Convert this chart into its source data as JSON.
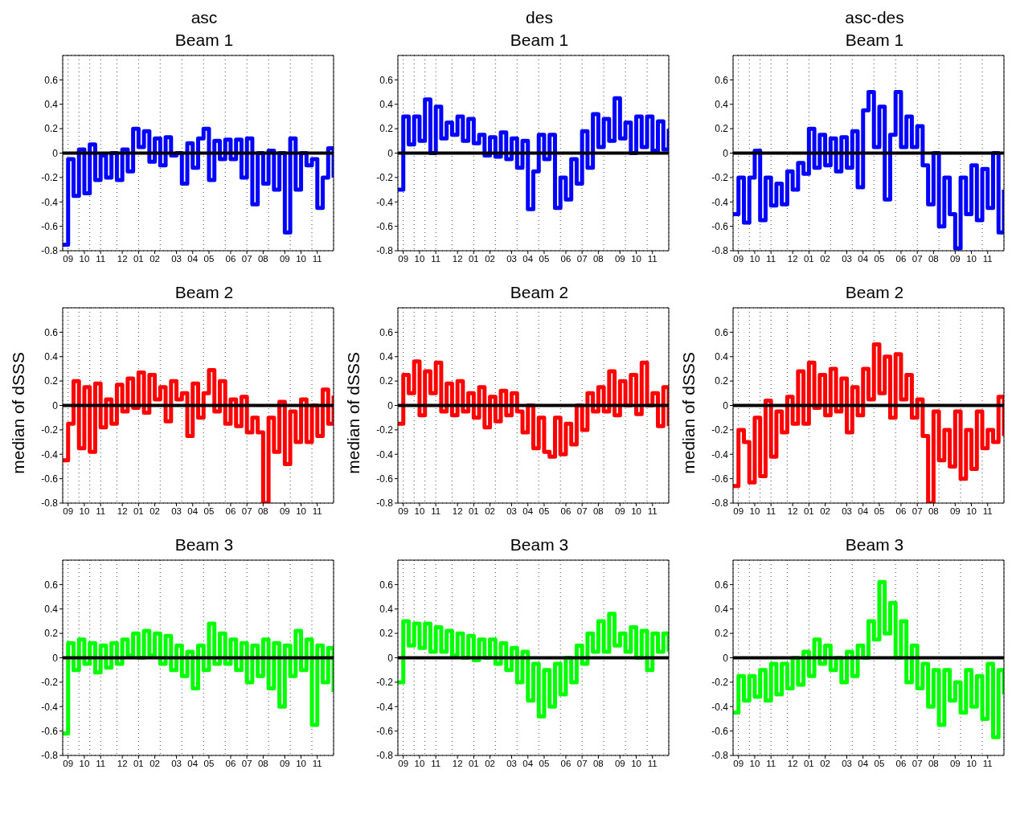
{
  "chart_data": [
    {
      "type": "step",
      "title": "asc",
      "subtitle": "Beam 1",
      "categories": [
        null,
        "09",
        null,
        null,
        "10",
        null,
        null,
        "11",
        null,
        null,
        null,
        "12",
        null,
        null,
        "01",
        null,
        null,
        "02",
        null,
        null,
        null,
        "03",
        null,
        null,
        "04",
        null,
        null,
        "05",
        null,
        null,
        null,
        "06",
        null,
        null,
        "07",
        null,
        null,
        "08",
        null,
        null,
        null,
        "09",
        null,
        null,
        "10",
        null,
        null,
        "11",
        null,
        null,
        null
      ],
      "ylim": [
        -0.8,
        0.8
      ],
      "yticks": [
        -0.8,
        -0.6,
        -0.4,
        -0.2,
        0,
        0.2,
        0.4,
        0.6
      ],
      "grid": true,
      "ref_lines": [
        {
          "axis": "y",
          "value": 0,
          "color": "#000000"
        }
      ],
      "series": [
        {
          "color": "#0000ff",
          "values": [
            -0.75,
            -0.05,
            -0.35,
            0.03,
            -0.33,
            0.07,
            -0.22,
            -0.02,
            -0.2,
            0.0,
            -0.22,
            0.03,
            -0.15,
            0.2,
            0.05,
            0.18,
            -0.07,
            0.12,
            -0.1,
            0.13,
            -0.02,
            0.0,
            -0.25,
            0.08,
            -0.12,
            0.12,
            0.2,
            -0.22,
            0.1,
            -0.05,
            0.11,
            -0.05,
            0.11,
            -0.2,
            0.12,
            -0.42,
            0.0,
            -0.25,
            0.02,
            -0.3,
            0.0,
            -0.65,
            0.12,
            -0.3,
            0.0,
            -0.1,
            -0.05,
            -0.45,
            -0.2,
            0.04,
            -0.2
          ]
        }
      ]
    },
    {
      "type": "step",
      "title": "des",
      "subtitle": "Beam 1",
      "categories": [
        null,
        "09",
        null,
        null,
        "10",
        null,
        null,
        "11",
        null,
        null,
        null,
        "12",
        null,
        null,
        "01",
        null,
        null,
        "02",
        null,
        null,
        null,
        "03",
        null,
        null,
        "04",
        null,
        null,
        "05",
        null,
        null,
        null,
        "06",
        null,
        null,
        "07",
        null,
        null,
        "08",
        null,
        null,
        null,
        "09",
        null,
        null,
        "10",
        null,
        null,
        "11",
        null,
        null,
        null
      ],
      "ylim": [
        -0.8,
        0.8
      ],
      "yticks": [
        -0.8,
        -0.6,
        -0.4,
        -0.2,
        0,
        0.2,
        0.4,
        0.6
      ],
      "grid": true,
      "ref_lines": [
        {
          "axis": "y",
          "value": 0,
          "color": "#000000"
        }
      ],
      "series": [
        {
          "color": "#0000ff",
          "values": [
            -0.3,
            0.3,
            0.07,
            0.3,
            0.1,
            0.44,
            0.0,
            0.38,
            0.12,
            0.25,
            0.15,
            0.3,
            0.1,
            0.28,
            0.08,
            0.15,
            -0.02,
            0.13,
            -0.03,
            0.17,
            -0.05,
            0.12,
            -0.12,
            0.1,
            -0.46,
            -0.15,
            0.15,
            -0.05,
            0.15,
            -0.45,
            -0.2,
            -0.38,
            -0.05,
            -0.25,
            0.18,
            -0.12,
            0.32,
            0.05,
            0.28,
            0.1,
            0.45,
            0.12,
            0.25,
            0.0,
            0.3,
            0.05,
            0.3,
            0.02,
            0.26,
            0.03,
            0.2
          ]
        }
      ]
    },
    {
      "type": "step",
      "title": "asc-des",
      "subtitle": "Beam 1",
      "categories": [
        null,
        "09",
        null,
        null,
        "10",
        null,
        null,
        "11",
        null,
        null,
        null,
        "12",
        null,
        null,
        "01",
        null,
        null,
        "02",
        null,
        null,
        null,
        "03",
        null,
        null,
        "04",
        null,
        null,
        "05",
        null,
        null,
        null,
        "06",
        null,
        null,
        "07",
        null,
        null,
        "08",
        null,
        null,
        null,
        "09",
        null,
        null,
        "10",
        null,
        null,
        "11",
        null,
        null,
        null
      ],
      "ylim": [
        -0.8,
        0.8
      ],
      "yticks": [
        -0.8,
        -0.6,
        -0.4,
        -0.2,
        0,
        0.2,
        0.4,
        0.6
      ],
      "grid": true,
      "ref_lines": [
        {
          "axis": "y",
          "value": 0,
          "color": "#000000"
        }
      ],
      "series": [
        {
          "color": "#0000ff",
          "values": [
            -0.5,
            -0.2,
            -0.57,
            -0.2,
            0.02,
            -0.55,
            -0.2,
            -0.43,
            -0.25,
            -0.42,
            -0.15,
            -0.3,
            -0.08,
            -0.17,
            0.2,
            -0.12,
            0.15,
            -0.1,
            0.12,
            -0.15,
            0.13,
            -0.12,
            0.18,
            -0.28,
            0.35,
            0.5,
            0.05,
            0.38,
            -0.38,
            0.15,
            0.5,
            0.05,
            0.3,
            0.05,
            0.22,
            -0.1,
            -0.42,
            0.0,
            -0.6,
            -0.2,
            -0.5,
            -0.78,
            -0.2,
            -0.5,
            -0.1,
            -0.55,
            -0.13,
            -0.45,
            0.0,
            -0.65,
            -0.3
          ]
        }
      ]
    },
    {
      "type": "step",
      "title": "Beam 2",
      "ylabel": "median of dSSS",
      "categories": [
        null,
        "09",
        null,
        null,
        "10",
        null,
        null,
        "11",
        null,
        null,
        null,
        "12",
        null,
        null,
        "01",
        null,
        null,
        "02",
        null,
        null,
        null,
        "03",
        null,
        null,
        "04",
        null,
        null,
        "05",
        null,
        null,
        null,
        "06",
        null,
        null,
        "07",
        null,
        null,
        "08",
        null,
        null,
        null,
        "09",
        null,
        null,
        "10",
        null,
        null,
        "11",
        null,
        null,
        null
      ],
      "ylim": [
        -0.8,
        0.8
      ],
      "yticks": [
        -0.8,
        -0.6,
        -0.4,
        -0.2,
        0,
        0.2,
        0.4,
        0.6
      ],
      "grid": true,
      "ref_lines": [
        {
          "axis": "y",
          "value": 0,
          "color": "#000000"
        }
      ],
      "series": [
        {
          "color": "#ff0000",
          "values": [
            -0.45,
            -0.15,
            0.2,
            -0.35,
            0.15,
            -0.38,
            0.18,
            -0.18,
            0.05,
            -0.15,
            0.17,
            -0.05,
            0.22,
            -0.02,
            0.27,
            -0.06,
            0.25,
            0.05,
            0.15,
            -0.13,
            0.2,
            0.05,
            0.1,
            -0.25,
            0.18,
            -0.1,
            0.1,
            0.29,
            -0.05,
            0.2,
            -0.15,
            0.05,
            -0.17,
            0.07,
            -0.22,
            -0.1,
            -0.22,
            -0.8,
            -0.1,
            -0.38,
            0.03,
            -0.48,
            -0.05,
            -0.3,
            0.05,
            -0.3,
            0.0,
            -0.25,
            0.13,
            -0.15,
            0.08
          ]
        }
      ]
    },
    {
      "type": "step",
      "title": "Beam 2",
      "ylabel": "median of dSSS",
      "categories": [
        null,
        "09",
        null,
        null,
        "10",
        null,
        null,
        "11",
        null,
        null,
        null,
        "12",
        null,
        null,
        "01",
        null,
        null,
        "02",
        null,
        null,
        null,
        "03",
        null,
        null,
        "04",
        null,
        null,
        "05",
        null,
        null,
        null,
        "06",
        null,
        null,
        "07",
        null,
        null,
        "08",
        null,
        null,
        null,
        "09",
        null,
        null,
        "10",
        null,
        null,
        "11",
        null,
        null,
        null
      ],
      "ylim": [
        -0.8,
        0.8
      ],
      "yticks": [
        -0.8,
        -0.6,
        -0.4,
        -0.2,
        0,
        0.2,
        0.4,
        0.6
      ],
      "grid": true,
      "ref_lines": [
        {
          "axis": "y",
          "value": 0,
          "color": "#000000"
        }
      ],
      "series": [
        {
          "color": "#ff0000",
          "values": [
            -0.15,
            0.25,
            0.1,
            0.36,
            -0.08,
            0.28,
            0.1,
            0.35,
            -0.05,
            0.18,
            -0.08,
            0.2,
            -0.05,
            0.1,
            -0.1,
            0.15,
            -0.18,
            0.07,
            -0.13,
            0.12,
            -0.08,
            0.1,
            -0.05,
            -0.22,
            0.0,
            -0.35,
            -0.1,
            -0.38,
            -0.42,
            -0.1,
            -0.4,
            -0.15,
            -0.32,
            0.0,
            -0.2,
            0.1,
            -0.05,
            0.15,
            -0.05,
            0.28,
            -0.08,
            0.2,
            0.0,
            0.25,
            -0.07,
            0.35,
            0.0,
            0.1,
            -0.17,
            0.15,
            -0.17
          ]
        }
      ]
    },
    {
      "type": "step",
      "title": "Beam 2",
      "ylabel": "median of dSSS",
      "categories": [
        null,
        "09",
        null,
        null,
        "10",
        null,
        null,
        "11",
        null,
        null,
        null,
        "12",
        null,
        null,
        "01",
        null,
        null,
        "02",
        null,
        null,
        null,
        "03",
        null,
        null,
        "04",
        null,
        null,
        "05",
        null,
        null,
        null,
        "06",
        null,
        null,
        "07",
        null,
        null,
        "08",
        null,
        null,
        null,
        "09",
        null,
        null,
        "10",
        null,
        null,
        "11",
        null,
        null,
        null
      ],
      "ylim": [
        -0.8,
        0.8
      ],
      "yticks": [
        -0.8,
        -0.6,
        -0.4,
        -0.2,
        0,
        0.2,
        0.4,
        0.6
      ],
      "grid": true,
      "ref_lines": [
        {
          "axis": "y",
          "value": 0,
          "color": "#000000"
        }
      ],
      "series": [
        {
          "color": "#ff0000",
          "values": [
            -0.66,
            -0.2,
            -0.3,
            -0.63,
            -0.1,
            -0.58,
            0.04,
            -0.42,
            -0.05,
            -0.22,
            0.07,
            -0.15,
            0.28,
            -0.15,
            0.35,
            -0.02,
            0.25,
            -0.08,
            0.3,
            -0.05,
            0.22,
            -0.22,
            0.15,
            -0.08,
            0.3,
            0.05,
            0.5,
            0.1,
            0.4,
            -0.1,
            0.42,
            0.05,
            0.25,
            -0.1,
            0.05,
            -0.25,
            -0.8,
            -0.05,
            -0.45,
            -0.2,
            -0.5,
            -0.05,
            -0.6,
            -0.2,
            -0.52,
            -0.05,
            -0.35,
            -0.2,
            -0.3,
            0.07,
            -0.25
          ]
        }
      ]
    },
    {
      "type": "step",
      "title": "Beam 3",
      "categories": [
        null,
        "09",
        null,
        null,
        "10",
        null,
        null,
        "11",
        null,
        null,
        null,
        "12",
        null,
        null,
        "01",
        null,
        null,
        "02",
        null,
        null,
        null,
        "03",
        null,
        null,
        "04",
        null,
        null,
        "05",
        null,
        null,
        null,
        "06",
        null,
        null,
        "07",
        null,
        null,
        "08",
        null,
        null,
        null,
        "09",
        null,
        null,
        "10",
        null,
        null,
        "11",
        null,
        null,
        null
      ],
      "ylim": [
        -0.8,
        0.8
      ],
      "yticks": [
        -0.8,
        -0.6,
        -0.4,
        -0.2,
        0,
        0.2,
        0.4,
        0.6
      ],
      "grid": true,
      "ref_lines": [
        {
          "axis": "y",
          "value": 0,
          "color": "#000000"
        }
      ],
      "series": [
        {
          "color": "#00ff00",
          "values": [
            -0.62,
            0.12,
            -0.1,
            0.15,
            -0.05,
            0.12,
            -0.12,
            0.1,
            -0.08,
            0.12,
            -0.05,
            0.15,
            0.02,
            0.2,
            0.0,
            0.22,
            0.02,
            0.2,
            -0.05,
            0.18,
            -0.1,
            0.1,
            -0.15,
            0.05,
            -0.25,
            0.1,
            -0.1,
            0.28,
            -0.05,
            0.2,
            -0.05,
            0.15,
            -0.1,
            0.12,
            -0.2,
            0.1,
            -0.15,
            0.15,
            -0.25,
            0.12,
            -0.4,
            0.1,
            -0.15,
            0.22,
            -0.1,
            0.15,
            -0.55,
            0.1,
            -0.2,
            0.08,
            -0.28
          ]
        }
      ]
    },
    {
      "type": "step",
      "title": "Beam 3",
      "categories": [
        null,
        "09",
        null,
        null,
        "10",
        null,
        null,
        "11",
        null,
        null,
        null,
        "12",
        null,
        null,
        "01",
        null,
        null,
        "02",
        null,
        null,
        null,
        "03",
        null,
        null,
        "04",
        null,
        null,
        "05",
        null,
        null,
        null,
        "06",
        null,
        null,
        "07",
        null,
        null,
        "08",
        null,
        null,
        null,
        "09",
        null,
        null,
        "10",
        null,
        null,
        "11",
        null,
        null,
        null
      ],
      "ylim": [
        -0.8,
        0.8
      ],
      "yticks": [
        -0.8,
        -0.6,
        -0.4,
        -0.2,
        0,
        0.2,
        0.4,
        0.6
      ],
      "grid": true,
      "ref_lines": [
        {
          "axis": "y",
          "value": 0,
          "color": "#000000"
        }
      ],
      "series": [
        {
          "color": "#00ff00",
          "values": [
            -0.2,
            0.3,
            0.1,
            0.28,
            0.08,
            0.28,
            0.05,
            0.25,
            0.05,
            0.22,
            0.02,
            0.2,
            0.0,
            0.18,
            -0.02,
            0.15,
            0.0,
            0.15,
            -0.05,
            0.12,
            -0.1,
            0.08,
            -0.2,
            0.05,
            -0.35,
            -0.05,
            -0.48,
            -0.1,
            -0.4,
            -0.05,
            -0.3,
            0.0,
            -0.2,
            0.1,
            -0.05,
            0.2,
            0.05,
            0.3,
            0.05,
            0.36,
            0.1,
            0.2,
            0.05,
            0.25,
            0.0,
            0.22,
            -0.1,
            0.2,
            0.05,
            0.2,
            0.05
          ]
        }
      ]
    },
    {
      "type": "step",
      "title": "Beam 3",
      "categories": [
        null,
        "09",
        null,
        null,
        "10",
        null,
        null,
        "11",
        null,
        null,
        null,
        "12",
        null,
        null,
        "01",
        null,
        null,
        "02",
        null,
        null,
        null,
        "03",
        null,
        null,
        "04",
        null,
        null,
        "05",
        null,
        null,
        null,
        "06",
        null,
        null,
        "07",
        null,
        null,
        "08",
        null,
        null,
        null,
        "09",
        null,
        null,
        "10",
        null,
        null,
        "11",
        null,
        null,
        null
      ],
      "ylim": [
        -0.8,
        0.8
      ],
      "yticks": [
        -0.8,
        -0.6,
        -0.4,
        -0.2,
        0,
        0.2,
        0.4,
        0.6
      ],
      "grid": true,
      "ref_lines": [
        {
          "axis": "y",
          "value": 0,
          "color": "#000000"
        }
      ],
      "series": [
        {
          "color": "#00ff00",
          "values": [
            -0.45,
            -0.15,
            -0.35,
            -0.15,
            -0.32,
            -0.1,
            -0.35,
            -0.05,
            -0.3,
            -0.05,
            -0.25,
            0.0,
            -0.22,
            0.05,
            -0.15,
            0.15,
            -0.05,
            0.1,
            -0.1,
            0.0,
            -0.2,
            0.05,
            -0.15,
            0.1,
            0.0,
            0.3,
            0.15,
            0.62,
            0.2,
            0.45,
            0.0,
            0.3,
            -0.2,
            0.1,
            -0.25,
            -0.05,
            -0.4,
            -0.1,
            -0.55,
            -0.1,
            -0.35,
            -0.2,
            -0.45,
            -0.1,
            -0.4,
            -0.15,
            -0.5,
            -0.05,
            -0.65,
            -0.1,
            -0.3
          ]
        }
      ]
    }
  ]
}
